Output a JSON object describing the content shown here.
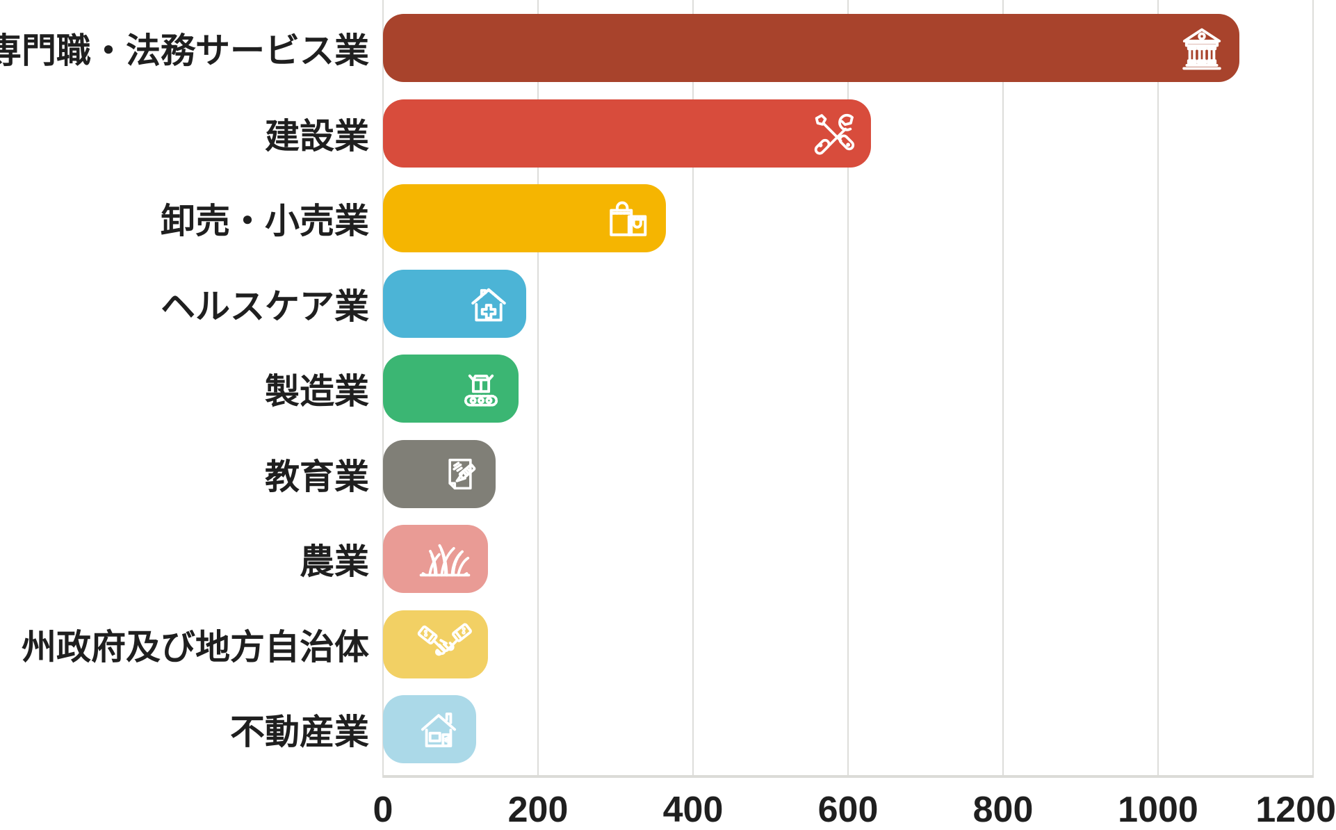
{
  "chart_data": {
    "type": "bar",
    "orientation": "horizontal",
    "title": "",
    "xlabel": "",
    "ylabel": "",
    "categories": [
      "専門職・法務サービス業",
      "建設業",
      "卸売・小売業",
      "ヘルスケア業",
      "製造業",
      "教育業",
      "農業",
      "州政府及び地方自治体",
      "不動産業"
    ],
    "values": [
      1105,
      630,
      365,
      185,
      175,
      145,
      135,
      135,
      120
    ],
    "bar_colors": [
      "#A8432C",
      "#D84C3C",
      "#F5B501",
      "#4CB4D6",
      "#3BB673",
      "#807F77",
      "#E99B95",
      "#F2D064",
      "#ABD9E8"
    ],
    "icons": [
      "bank-icon",
      "tools-icon",
      "shopping-bags-icon",
      "medical-house-icon",
      "conveyor-box-icon",
      "document-pen-icon",
      "grass-icon",
      "handshake-icon",
      "house-icon"
    ],
    "xlim": [
      0,
      1200
    ],
    "x_ticks": [
      "0",
      "200",
      "400",
      "600",
      "800",
      "1000",
      "1200"
    ],
    "grid": true,
    "legend_position": "none"
  },
  "colors": {
    "background": "#FFFFFF",
    "grid_line": "#DDDDDA",
    "axis_line": "#DBDBD7",
    "tick_text": "#1F1F1F",
    "label_text": "#1F1F1F",
    "icon_stroke": "#FFFFFF"
  }
}
